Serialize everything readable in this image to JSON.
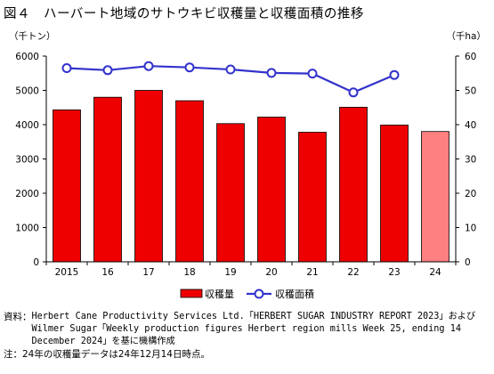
{
  "title": "図４　ハーバート地域のサトウキビ収穫量と収穫面積の推移",
  "left_unit": "（千トン）",
  "right_unit": "（千ha）",
  "chart_data": {
    "type": "bar+line",
    "categories": [
      "2015",
      "16",
      "17",
      "18",
      "19",
      "20",
      "21",
      "22",
      "23",
      "24"
    ],
    "series": [
      {
        "name": "収穫量",
        "type": "bar",
        "axis": "left",
        "values": [
          4430,
          4800,
          5000,
          4700,
          4030,
          4220,
          3780,
          4510,
          3990,
          3800
        ],
        "color": "#ee0000",
        "last_bar_color": "#ff8080"
      },
      {
        "name": "収穫面積",
        "type": "line",
        "axis": "right",
        "values": [
          56.5,
          55.9,
          57.1,
          56.7,
          56.1,
          55.1,
          54.9,
          49.4,
          54.5,
          null
        ],
        "color": "#3333cc"
      }
    ],
    "ylim_left": [
      0,
      6000
    ],
    "yticks_left": [
      "0",
      "1000",
      "2000",
      "3000",
      "4000",
      "5000",
      "6000"
    ],
    "ylim_right": [
      0,
      60
    ],
    "yticks_right": [
      "0",
      "10",
      "20",
      "30",
      "40",
      "50",
      "60"
    ],
    "legend_position": "bottom",
    "grid": false
  },
  "notes": {
    "source_label": "資料：",
    "source_line1": "Herbert Cane Productivity Services Ltd.「HERBERT SUGAR INDUSTRY REPORT 2023」および",
    "source_line2": "Wilmer Sugar「Weekly production figures Herbert region mills Week 25, ending 14",
    "source_line3": "December 2024」を基に機構作成",
    "note_label": "注：",
    "note_text": "24年の収穫量データは24年12月14日時点。"
  }
}
